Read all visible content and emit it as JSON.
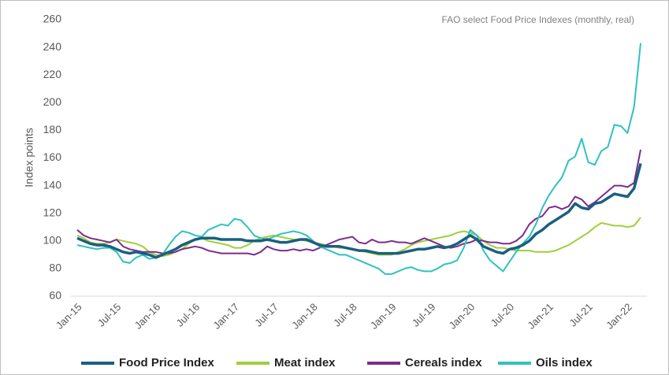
{
  "chart_data": {
    "type": "line",
    "title": "FAO select Food Price Indexes (monthly, real)",
    "y_label": "Index points",
    "categories": [
      "Jan-15",
      null,
      null,
      null,
      null,
      null,
      "Jul-15",
      null,
      null,
      null,
      null,
      null,
      "Jan-16",
      null,
      null,
      null,
      null,
      null,
      "Jul-16",
      null,
      null,
      null,
      null,
      null,
      "Jan-17",
      null,
      null,
      null,
      null,
      null,
      "Jul-17",
      null,
      null,
      null,
      null,
      null,
      "Jan-18",
      null,
      null,
      null,
      null,
      null,
      "Jul-18",
      null,
      null,
      null,
      null,
      null,
      "Jan-19",
      null,
      null,
      null,
      null,
      null,
      "Jul-19",
      null,
      null,
      null,
      null,
      null,
      "Jan-20",
      null,
      null,
      null,
      null,
      null,
      "Jul-20",
      null,
      null,
      null,
      null,
      null,
      "Jan-21",
      null,
      null,
      null,
      null,
      null,
      "Jul-21",
      null,
      null,
      null,
      null,
      null,
      "Jan-22",
      null,
      null
    ],
    "series": [
      {
        "name": "Food Price Index",
        "color": "#1b5f80",
        "values": [
          102,
          100,
          98,
          97,
          97,
          96,
          94,
          92,
          91,
          92,
          91,
          90,
          88,
          90,
          92,
          94,
          97,
          99,
          101,
          102,
          102,
          102,
          101,
          101,
          101,
          101,
          100,
          100,
          100,
          101,
          100,
          99,
          99,
          100,
          101,
          101,
          99,
          97,
          96,
          96,
          96,
          95,
          94,
          93,
          93,
          92,
          91,
          91,
          91,
          91,
          92,
          93,
          94,
          94,
          95,
          96,
          95,
          96,
          98,
          101,
          104,
          101,
          96,
          94,
          92,
          91,
          94,
          95,
          97,
          100,
          105,
          108,
          112,
          115,
          118,
          121,
          127,
          124,
          123,
          127,
          128,
          131,
          134,
          133,
          132,
          138,
          156
        ]
      },
      {
        "name": "Meat index",
        "color": "#9fcf3a",
        "values": [
          104,
          102,
          99,
          98,
          98,
          99,
          101,
          100,
          99,
          98,
          96,
          92,
          90,
          89,
          90,
          92,
          94,
          98,
          101,
          102,
          100,
          99,
          98,
          97,
          95,
          95,
          97,
          100,
          102,
          103,
          104,
          103,
          102,
          101,
          101,
          100,
          99,
          98,
          97,
          96,
          95,
          95,
          94,
          93,
          92,
          91,
          90,
          90,
          90,
          92,
          94,
          97,
          99,
          100,
          101,
          102,
          103,
          104,
          106,
          107,
          106,
          104,
          100,
          97,
          95,
          95,
          94,
          93,
          93,
          93,
          92,
          92,
          92,
          93,
          95,
          97,
          100,
          103,
          106,
          110,
          113,
          112,
          111,
          111,
          110,
          111,
          117
        ]
      },
      {
        "name": "Cereals index",
        "color": "#7e2b8e",
        "values": [
          108,
          104,
          102,
          101,
          100,
          99,
          101,
          96,
          94,
          93,
          92,
          92,
          92,
          91,
          91,
          92,
          94,
          95,
          96,
          95,
          93,
          92,
          91,
          91,
          91,
          91,
          91,
          90,
          92,
          96,
          94,
          93,
          93,
          94,
          93,
          94,
          93,
          95,
          97,
          99,
          101,
          102,
          103,
          99,
          98,
          101,
          99,
          99,
          100,
          99,
          99,
          98,
          100,
          102,
          100,
          98,
          96,
          95,
          96,
          98,
          99,
          101,
          100,
          99,
          99,
          98,
          98,
          100,
          104,
          112,
          116,
          118,
          124,
          125,
          123,
          125,
          132,
          130,
          125,
          128,
          132,
          136,
          140,
          140,
          139,
          142,
          166
        ]
      },
      {
        "name": "Oils index",
        "color": "#2fc2bf",
        "values": [
          97,
          96,
          95,
          94,
          95,
          95,
          92,
          85,
          84,
          88,
          90,
          87,
          88,
          90,
          97,
          103,
          107,
          106,
          104,
          103,
          108,
          110,
          112,
          111,
          116,
          115,
          110,
          104,
          102,
          101,
          103,
          105,
          106,
          107,
          106,
          104,
          100,
          96,
          94,
          92,
          90,
          90,
          88,
          86,
          84,
          82,
          80,
          76,
          76,
          78,
          80,
          81,
          79,
          78,
          78,
          80,
          83,
          84,
          86,
          95,
          108,
          104,
          93,
          86,
          82,
          78,
          85,
          92,
          98,
          103,
          112,
          124,
          133,
          140,
          146,
          158,
          161,
          174,
          157,
          155,
          165,
          168,
          184,
          183,
          178,
          197,
          243
        ]
      }
    ],
    "ylim": [
      60,
      260
    ],
    "yticks": [
      60,
      80,
      100,
      120,
      140,
      160,
      180,
      200,
      220,
      240,
      260
    ],
    "grid": false,
    "legend": "bottom"
  }
}
